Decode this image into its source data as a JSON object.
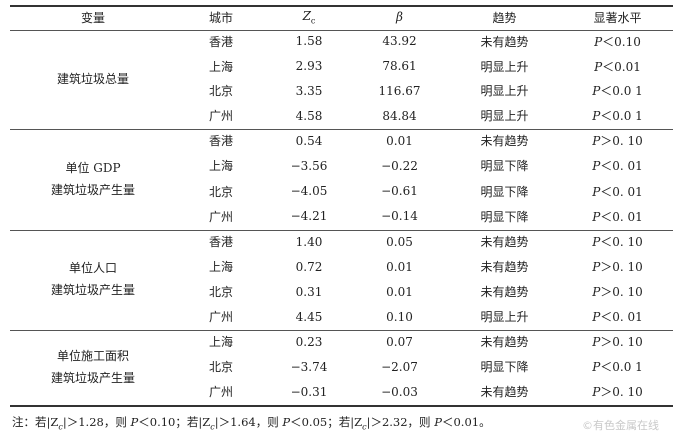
{
  "table": {
    "headers": {
      "variable": "变量",
      "city": "城市",
      "zc_letter": "Z",
      "zc_sub": "c",
      "beta": "β",
      "trend": "趋势",
      "significance": "显著水平"
    },
    "groups": [
      {
        "line1": "建筑垃圾总量",
        "line2": "",
        "rows": [
          {
            "city": "香港",
            "zc": "1.58",
            "beta": "43.92",
            "trend": "未有趋势",
            "p": "P",
            "sig": "＜0.10"
          },
          {
            "city": "上海",
            "zc": "2.93",
            "beta": "78.61",
            "trend": "明显上升",
            "p": "P",
            "sig": "＜0.01"
          },
          {
            "city": "北京",
            "zc": "3.35",
            "beta": "116.67",
            "trend": "明显上升",
            "p": "P",
            "sig": "＜0.0 1"
          },
          {
            "city": "广州",
            "zc": "4.58",
            "beta": "84.84",
            "trend": "明显上升",
            "p": "P",
            "sig": "＜0.0 1"
          }
        ]
      },
      {
        "line1": "单位 GDP",
        "line2": "建筑垃圾产生量",
        "rows": [
          {
            "city": "香港",
            "zc": "0.54",
            "beta": "0.01",
            "trend": "未有趋势",
            "p": "P",
            "sig": "＞0. 10"
          },
          {
            "city": "上海",
            "zc": "−3.56",
            "beta": "−0.22",
            "trend": "明显下降",
            "p": "P",
            "sig": "＜0. 01"
          },
          {
            "city": "北京",
            "zc": "−4.05",
            "beta": "−0.61",
            "trend": "明显下降",
            "p": "P",
            "sig": "＜0. 01"
          },
          {
            "city": "广州",
            "zc": "−4.21",
            "beta": "−0.14",
            "trend": "明显下降",
            "p": "P",
            "sig": "＜0. 01"
          }
        ]
      },
      {
        "line1": "单位人口",
        "line2": "建筑垃圾产生量",
        "rows": [
          {
            "city": "香港",
            "zc": "1.40",
            "beta": "0.05",
            "trend": "未有趋势",
            "p": "P",
            "sig": "＜0. 10"
          },
          {
            "city": "上海",
            "zc": "0.72",
            "beta": "0.01",
            "trend": "未有趋势",
            "p": "P",
            "sig": "＞0. 10"
          },
          {
            "city": "北京",
            "zc": "0.31",
            "beta": "0.01",
            "trend": "未有趋势",
            "p": "P",
            "sig": "＞0. 10"
          },
          {
            "city": "广州",
            "zc": "4.45",
            "beta": "0.10",
            "trend": "明显上升",
            "p": "P",
            "sig": "＜0. 01"
          }
        ]
      },
      {
        "line1": "单位施工面积",
        "line2": "建筑垃圾产生量",
        "rows": [
          {
            "city": "上海",
            "zc": "0.23",
            "beta": "0.07",
            "trend": "未有趋势",
            "p": "P",
            "sig": "＞0. 10"
          },
          {
            "city": "北京",
            "zc": "−3.74",
            "beta": "−2.07",
            "trend": "明显下降",
            "p": "P",
            "sig": "＜0.0 1"
          },
          {
            "city": "广州",
            "zc": "−0.31",
            "beta": "−0.03",
            "trend": "未有趋势",
            "p": "P",
            "sig": "＞0. 10"
          }
        ]
      }
    ]
  },
  "note": {
    "a": "注：若|Z",
    "b": "|＞1.28，则 ",
    "c": "＜0.10；若|Z",
    "d": "|＞1.64，则 ",
    "e": "＜0.05；若|Z",
    "f": "|＞2.32，则 ",
    "g": "＜0.01。",
    "sub": "c",
    "p": "P"
  },
  "watermark": "©有色金属在线"
}
